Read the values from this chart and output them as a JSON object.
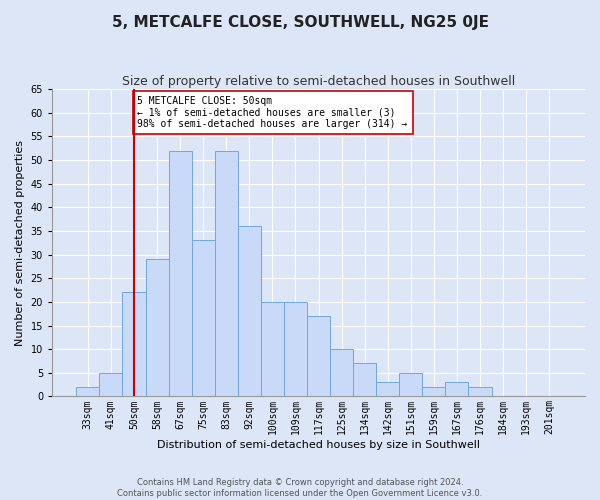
{
  "title": "5, METCALFE CLOSE, SOUTHWELL, NG25 0JE",
  "subtitle": "Size of property relative to semi-detached houses in Southwell",
  "xlabel": "Distribution of semi-detached houses by size in Southwell",
  "ylabel": "Number of semi-detached properties",
  "categories": [
    "33sqm",
    "41sqm",
    "50sqm",
    "58sqm",
    "67sqm",
    "75sqm",
    "83sqm",
    "92sqm",
    "100sqm",
    "109sqm",
    "117sqm",
    "125sqm",
    "134sqm",
    "142sqm",
    "151sqm",
    "159sqm",
    "167sqm",
    "176sqm",
    "184sqm",
    "193sqm",
    "201sqm"
  ],
  "values": [
    2,
    5,
    22,
    29,
    52,
    33,
    52,
    36,
    20,
    20,
    17,
    10,
    7,
    3,
    5,
    2,
    3,
    2,
    0,
    0,
    0
  ],
  "bar_color": "#c9daf8",
  "bar_edge_color": "#6fa8dc",
  "highlight_index": 2,
  "highlight_color": "#cc0000",
  "ylim": [
    0,
    65
  ],
  "yticks": [
    0,
    5,
    10,
    15,
    20,
    25,
    30,
    35,
    40,
    45,
    50,
    55,
    60,
    65
  ],
  "annotation_title": "5 METCALFE CLOSE: 50sqm",
  "annotation_line1": "← 1% of semi-detached houses are smaller (3)",
  "annotation_line2": "98% of semi-detached houses are larger (314) →",
  "footnote1": "Contains HM Land Registry data © Crown copyright and database right 2024.",
  "footnote2": "Contains public sector information licensed under the Open Government Licence v3.0.",
  "bg_color": "#dce6f7",
  "fig_color": "#dce6f7",
  "grid_color": "#ffffff",
  "title_fontsize": 11,
  "subtitle_fontsize": 9,
  "tick_fontsize": 7,
  "ylabel_fontsize": 8,
  "xlabel_fontsize": 8,
  "annotation_fontsize": 7
}
